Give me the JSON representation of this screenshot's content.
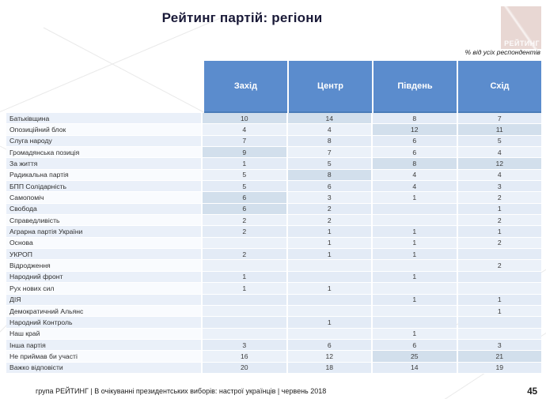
{
  "title": "Рейтинг партій: регіони",
  "logo": {
    "text": "РЕЙТИНГ"
  },
  "subtitle": "% від усіх респондентів",
  "table": {
    "columns": [
      "Захід",
      "Центр",
      "Південь",
      "Схід"
    ],
    "rows": [
      {
        "label": "Батьківщина",
        "values": [
          "10",
          "14",
          "8",
          "7"
        ],
        "highlight": [
          0,
          1
        ]
      },
      {
        "label": "Опозиційний блок",
        "values": [
          "4",
          "4",
          "12",
          "11"
        ],
        "highlight": [
          2,
          3
        ]
      },
      {
        "label": "Слуга народу",
        "values": [
          "7",
          "8",
          "6",
          "5"
        ],
        "highlight": []
      },
      {
        "label": "Громадянська позиція",
        "values": [
          "9",
          "7",
          "6",
          "4"
        ],
        "highlight": [
          0
        ]
      },
      {
        "label": "За життя",
        "values": [
          "1",
          "5",
          "8",
          "12"
        ],
        "highlight": [
          2,
          3
        ]
      },
      {
        "label": "Радикальна партія",
        "values": [
          "5",
          "8",
          "4",
          "4"
        ],
        "highlight": [
          1
        ]
      },
      {
        "label": "БПП Солідарність",
        "values": [
          "5",
          "6",
          "4",
          "3"
        ],
        "highlight": []
      },
      {
        "label": "Самопоміч",
        "values": [
          "6",
          "3",
          "1",
          "2"
        ],
        "highlight": [
          0
        ]
      },
      {
        "label": "Свобода",
        "values": [
          "6",
          "2",
          "",
          "1"
        ],
        "highlight": [
          0
        ]
      },
      {
        "label": "Справедливість",
        "values": [
          "2",
          "2",
          "",
          "2"
        ],
        "highlight": []
      },
      {
        "label": "Аграрна партія України",
        "values": [
          "2",
          "1",
          "1",
          "1"
        ],
        "highlight": []
      },
      {
        "label": "Основа",
        "values": [
          "",
          "1",
          "1",
          "2"
        ],
        "highlight": []
      },
      {
        "label": "УКРОП",
        "values": [
          "2",
          "1",
          "1",
          ""
        ],
        "highlight": []
      },
      {
        "label": "Відродження",
        "values": [
          "",
          "",
          "",
          "2"
        ],
        "highlight": []
      },
      {
        "label": "Народний фронт",
        "values": [
          "1",
          "",
          "1",
          ""
        ],
        "highlight": []
      },
      {
        "label": "Рух нових сил",
        "values": [
          "1",
          "1",
          "",
          ""
        ],
        "highlight": []
      },
      {
        "label": "ДІЯ",
        "values": [
          "",
          "",
          "1",
          "1"
        ],
        "highlight": []
      },
      {
        "label": "Демократичний Альянс",
        "values": [
          "",
          "",
          "",
          "1"
        ],
        "highlight": []
      },
      {
        "label": "Народний Контроль",
        "values": [
          "",
          "1",
          "",
          ""
        ],
        "highlight": []
      },
      {
        "label": "Наш край",
        "values": [
          "",
          "",
          "1",
          ""
        ],
        "highlight": []
      },
      {
        "label": "Інша партія",
        "values": [
          "3",
          "6",
          "6",
          "3"
        ],
        "highlight": []
      },
      {
        "label": "Не приймав би участі",
        "values": [
          "16",
          "12",
          "25",
          "21"
        ],
        "highlight": [
          2,
          3
        ]
      },
      {
        "label": "Важко відповісти",
        "values": [
          "20",
          "18",
          "14",
          "19"
        ],
        "highlight": []
      }
    ]
  },
  "footer": {
    "text": "група РЕЙТИНГ  | В очікуванні президентських виборів: настрої українців |  червень 2018",
    "page": "45"
  },
  "colors": {
    "header_blue": "#5b8ccd",
    "cell_blue": "#e3ebf6",
    "highlight_cell": "#d2dfec",
    "logo_pink": "#e8d7d3"
  },
  "chart_data": {
    "type": "table",
    "title": "Рейтинг партій: регіони",
    "note": "% від усіх респондентів",
    "columns": [
      "Захід",
      "Центр",
      "Південь",
      "Схід"
    ],
    "rows": [
      {
        "party": "Батьківщина",
        "values": [
          10,
          14,
          8,
          7
        ]
      },
      {
        "party": "Опозиційний блок",
        "values": [
          4,
          4,
          12,
          11
        ]
      },
      {
        "party": "Слуга народу",
        "values": [
          7,
          8,
          6,
          5
        ]
      },
      {
        "party": "Громадянська позиція",
        "values": [
          9,
          7,
          6,
          4
        ]
      },
      {
        "party": "За життя",
        "values": [
          1,
          5,
          8,
          12
        ]
      },
      {
        "party": "Радикальна партія",
        "values": [
          5,
          8,
          4,
          4
        ]
      },
      {
        "party": "БПП Солідарність",
        "values": [
          5,
          6,
          4,
          3
        ]
      },
      {
        "party": "Самопоміч",
        "values": [
          6,
          3,
          1,
          2
        ]
      },
      {
        "party": "Свобода",
        "values": [
          6,
          2,
          null,
          1
        ]
      },
      {
        "party": "Справедливість",
        "values": [
          2,
          2,
          null,
          2
        ]
      },
      {
        "party": "Аграрна партія України",
        "values": [
          2,
          1,
          1,
          1
        ]
      },
      {
        "party": "Основа",
        "values": [
          null,
          1,
          1,
          2
        ]
      },
      {
        "party": "УКРОП",
        "values": [
          2,
          1,
          1,
          null
        ]
      },
      {
        "party": "Відродження",
        "values": [
          null,
          null,
          null,
          2
        ]
      },
      {
        "party": "Народний фронт",
        "values": [
          1,
          null,
          1,
          null
        ]
      },
      {
        "party": "Рух нових сил",
        "values": [
          1,
          1,
          null,
          null
        ]
      },
      {
        "party": "ДІЯ",
        "values": [
          null,
          null,
          1,
          1
        ]
      },
      {
        "party": "Демократичний Альянс",
        "values": [
          null,
          null,
          null,
          1
        ]
      },
      {
        "party": "Народний Контроль",
        "values": [
          null,
          1,
          null,
          null
        ]
      },
      {
        "party": "Наш край",
        "values": [
          null,
          null,
          1,
          null
        ]
      },
      {
        "party": "Інша партія",
        "values": [
          3,
          6,
          6,
          3
        ]
      },
      {
        "party": "Не приймав би участі",
        "values": [
          16,
          12,
          25,
          21
        ]
      },
      {
        "party": "Важко відповісти",
        "values": [
          20,
          18,
          14,
          19
        ]
      }
    ]
  }
}
